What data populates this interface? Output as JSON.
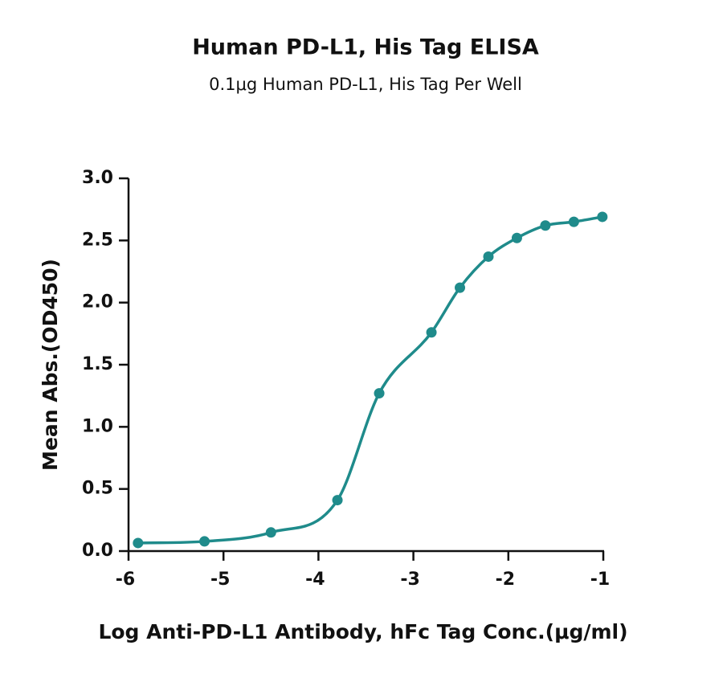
{
  "chart_data": {
    "type": "line",
    "title": "Human PD-L1, His Tag ELISA",
    "subtitle": "0.1μg Human PD-L1, His Tag Per Well",
    "x_label": "Log Anti-PD-L1 Antibody, hFc Tag Conc.(μg/ml)",
    "y_label": "Mean Abs.(OD450)",
    "x": [
      -5.9,
      -5.2,
      -4.5,
      -3.8,
      -3.36,
      -2.81,
      -2.51,
      -2.21,
      -1.91,
      -1.61,
      -1.31,
      -1.01
    ],
    "series": [
      {
        "color": "#1f8b8b",
        "values": [
          0.065,
          0.078,
          0.15,
          0.41,
          1.27,
          1.76,
          2.12,
          2.37,
          2.52,
          2.62,
          2.65,
          2.69
        ]
      }
    ],
    "xlim": [
      -6,
      -1
    ],
    "xticks": [
      -6,
      -5,
      -4,
      -3,
      -2,
      -1
    ],
    "ylim": [
      0,
      3
    ],
    "yticks": [
      {
        "value": 0,
        "label": "0.0"
      },
      0.5,
      {
        "value": 1,
        "label": "1.0"
      },
      1.5,
      {
        "value": 2,
        "label": "2.0"
      },
      2.5,
      {
        "value": 3,
        "label": "3.0"
      }
    ],
    "grid": false
  }
}
